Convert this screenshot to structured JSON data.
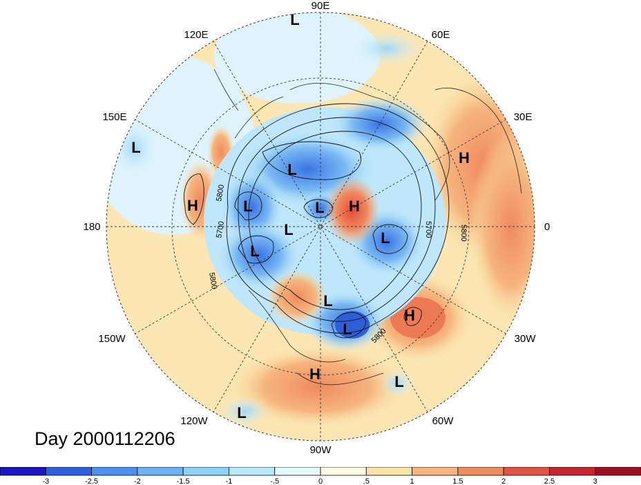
{
  "map": {
    "projection": "north-polar-stereographic",
    "longitude_labels": [
      "90E",
      "60E",
      "30E",
      "0",
      "30W",
      "60W",
      "90W",
      "120W",
      "150W",
      "180",
      "150E",
      "120E"
    ],
    "contour_labels": [
      "5800",
      "5700",
      "5800",
      "5700",
      "5800",
      "5800"
    ],
    "centers": [
      {
        "letter": "L"
      },
      {
        "letter": "L"
      },
      {
        "letter": "H"
      },
      {
        "letter": "L"
      },
      {
        "letter": "H"
      },
      {
        "letter": "L"
      },
      {
        "letter": "L"
      },
      {
        "letter": "H"
      },
      {
        "letter": "L"
      },
      {
        "letter": "L"
      },
      {
        "letter": "L"
      },
      {
        "letter": "L"
      },
      {
        "letter": "H"
      },
      {
        "letter": "L"
      },
      {
        "letter": "H"
      },
      {
        "letter": "L"
      },
      {
        "letter": "L"
      }
    ]
  },
  "caption": "Day 2000112206",
  "colorbar": {
    "tick_labels": [
      "-3",
      "-2.5",
      "-2",
      "-1.5",
      "-1",
      "-.5",
      "0",
      ".5",
      "1",
      "1.5",
      "2",
      "2.5",
      "3"
    ],
    "colors": [
      "#1f15c8",
      "#2e5ee6",
      "#4b8ff0",
      "#6db2f4",
      "#8fd2f7",
      "#b8e9fb",
      "#e6f8fd",
      "#fffbe0",
      "#fbe3a8",
      "#f6b57e",
      "#ef8a5c",
      "#e45244",
      "#c9252f",
      "#9e0f24"
    ]
  }
}
